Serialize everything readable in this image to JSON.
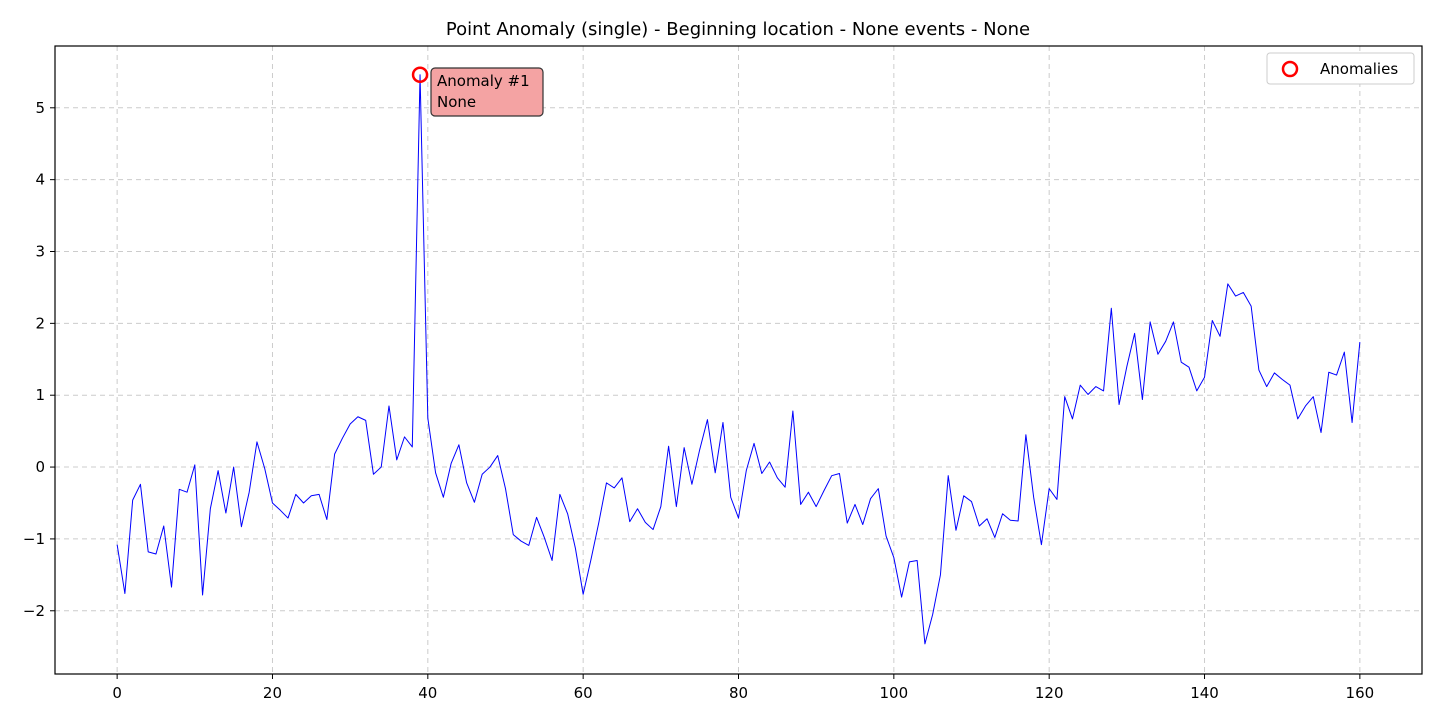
{
  "chart_data": {
    "type": "line",
    "title": "Point Anomaly (single) - Beginning location - None events - None",
    "xlabel": "",
    "ylabel": "",
    "xlim": [
      -8,
      168
    ],
    "ylim": [
      -2.88,
      5.86
    ],
    "xticks": [
      0,
      20,
      40,
      60,
      80,
      100,
      120,
      140,
      160
    ],
    "yticks": [
      -2,
      -1,
      0,
      1,
      2,
      3,
      4,
      5
    ],
    "ytick_labels": [
      "−2",
      "−1",
      "0",
      "1",
      "2",
      "3",
      "4",
      "5"
    ],
    "grid": true,
    "legend_placement": "top-right",
    "series": [
      {
        "name": "",
        "color": "#0000ff",
        "x": [
          0,
          1,
          2,
          3,
          4,
          5,
          6,
          7,
          8,
          9,
          10,
          11,
          12,
          13,
          14,
          15,
          16,
          17,
          18,
          19,
          20,
          21,
          22,
          23,
          24,
          25,
          26,
          27,
          28,
          29,
          30,
          31,
          32,
          33,
          34,
          35,
          36,
          37,
          38,
          39,
          40,
          41,
          42,
          43,
          44,
          45,
          46,
          47,
          48,
          49,
          50,
          51,
          52,
          53,
          54,
          55,
          56,
          57,
          58,
          59,
          60,
          61,
          62,
          63,
          64,
          65,
          66,
          67,
          68,
          69,
          70,
          71,
          72,
          73,
          74,
          75,
          76,
          77,
          78,
          79,
          80,
          81,
          82,
          83,
          84,
          85,
          86,
          87,
          88,
          89,
          90,
          91,
          92,
          93,
          94,
          95,
          96,
          97,
          98,
          99,
          100,
          101,
          102,
          103,
          104,
          105,
          106,
          107,
          108,
          109,
          110,
          111,
          112,
          113,
          114,
          115,
          116,
          117,
          118,
          119,
          120,
          121,
          122,
          123,
          124,
          125,
          126,
          127,
          128,
          129,
          130,
          131,
          132,
          133,
          134,
          135,
          136,
          137,
          138,
          139,
          140,
          141,
          142,
          143,
          144,
          145,
          146,
          147,
          148,
          149,
          150,
          151,
          152,
          153,
          154,
          155,
          156,
          157,
          158,
          159,
          160
        ],
        "y": [
          -1.08,
          -1.76,
          -0.46,
          -0.24,
          -1.18,
          -1.21,
          -0.82,
          -1.67,
          -0.31,
          -0.35,
          0.03,
          -1.78,
          -0.58,
          -0.05,
          -0.64,
          0.0,
          -0.83,
          -0.35,
          0.35,
          -0.02,
          -0.5,
          -0.6,
          -0.71,
          -0.38,
          -0.5,
          -0.4,
          -0.38,
          -0.73,
          0.18,
          0.4,
          0.6,
          0.7,
          0.65,
          -0.1,
          0.0,
          0.85,
          0.1,
          0.42,
          0.28,
          5.46,
          0.68,
          -0.08,
          -0.42,
          0.05,
          0.31,
          -0.22,
          -0.49,
          -0.1,
          0.0,
          0.16,
          -0.3,
          -0.94,
          -1.03,
          -1.09,
          -0.7,
          -0.98,
          -1.3,
          -0.38,
          -0.65,
          -1.13,
          -1.77,
          -1.29,
          -0.78,
          -0.22,
          -0.29,
          -0.15,
          -0.76,
          -0.58,
          -0.77,
          -0.87,
          -0.55,
          0.29,
          -0.55,
          0.27,
          -0.24,
          0.24,
          0.66,
          -0.08,
          0.62,
          -0.42,
          -0.71,
          -0.05,
          0.33,
          -0.09,
          0.07,
          -0.15,
          -0.28,
          0.78,
          -0.52,
          -0.35,
          -0.55,
          -0.33,
          -0.12,
          -0.09,
          -0.78,
          -0.52,
          -0.8,
          -0.44,
          -0.3,
          -0.96,
          -1.26,
          -1.81,
          -1.32,
          -1.3,
          -2.46,
          -2.05,
          -1.5,
          -0.12,
          -0.88,
          -0.4,
          -0.48,
          -0.82,
          -0.72,
          -0.98,
          -0.65,
          -0.74,
          -0.75,
          0.45,
          -0.42,
          -1.08,
          -0.3,
          -0.45,
          0.98,
          0.67,
          1.14,
          1.01,
          1.12,
          1.06,
          2.21,
          0.87,
          1.4,
          1.86,
          0.94,
          2.02,
          1.57,
          1.75,
          2.02,
          1.46,
          1.39,
          1.06,
          1.25,
          2.04,
          1.82,
          2.55,
          2.38,
          2.43,
          2.24,
          1.35,
          1.12,
          1.31,
          1.22,
          1.14,
          0.67,
          0.85,
          0.98,
          0.48,
          1.32,
          1.28,
          1.6,
          0.62,
          1.74
        ]
      }
    ],
    "anomalies": [
      {
        "x": 39,
        "y": 5.46,
        "color": "#ff0000"
      }
    ],
    "legend": {
      "label": "Anomalies"
    },
    "annotation": {
      "line1": "Anomaly #1",
      "line2": "None",
      "box_color": "#f4a3a3"
    }
  }
}
